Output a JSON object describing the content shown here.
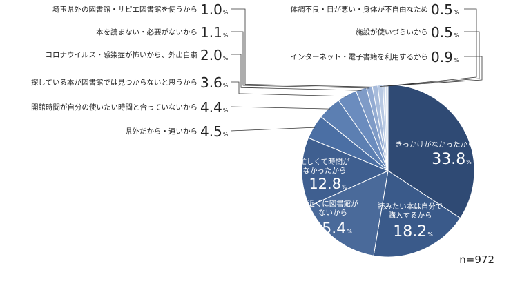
{
  "chart_data": {
    "type": "pie",
    "start": "top",
    "direction": "clockwise",
    "slices": [
      {
        "label": "きっかけがなかったから",
        "value": 33.8,
        "value_text": "33.8",
        "color": "#2f4a74"
      },
      {
        "label": "読みたい本は自分で購入するから",
        "value": 18.2,
        "value_text": "18.2",
        "color": "#3a5a8a"
      },
      {
        "label": "近くに図書館がないから",
        "value": 15.4,
        "value_text": "15.4",
        "color": "#4a6a9a"
      },
      {
        "label": "忙しくて時間がなかったから",
        "value": 12.8,
        "value_text": "12.8",
        "color": "#3f5f90"
      },
      {
        "label": "県外だから・遠いから",
        "value": 4.5,
        "value_text": "4.5",
        "color": "#4b6fa4"
      },
      {
        "label": "開館時間が自分の使いたい時間と合っていないから",
        "value": 4.4,
        "value_text": "4.4",
        "color": "#5c7fb2"
      },
      {
        "label": "探している本が図書館では見つからないと思うから",
        "value": 3.6,
        "value_text": "3.6",
        "color": "#6b8cbe"
      },
      {
        "label": "コロナウイルス・感染症が怖いから、外出自粛",
        "value": 2.0,
        "value_text": "2.0",
        "color": "#7f9bc7"
      },
      {
        "label": "本を読まない・必要がないから",
        "value": 1.1,
        "value_text": "1.1",
        "color": "#93abd2"
      },
      {
        "label": "埼玉県外の図書館・サピエ図書館を使うから",
        "value": 1.0,
        "value_text": "1.0",
        "color": "#a7bbdb"
      },
      {
        "label": "インターネット・電子書籍を利用するから",
        "value": 0.9,
        "value_text": "0.9",
        "color": "#b8c9e3"
      },
      {
        "label": "施設が使いづらいから",
        "value": 0.5,
        "value_text": "0.5",
        "color": "#c9d6ea"
      },
      {
        "label": "体調不良・目が悪い・身体が不自由なため",
        "value": 0.5,
        "value_text": "0.5",
        "color": "#d6e0ef"
      }
    ],
    "unit": "%",
    "note": "n=972"
  }
}
